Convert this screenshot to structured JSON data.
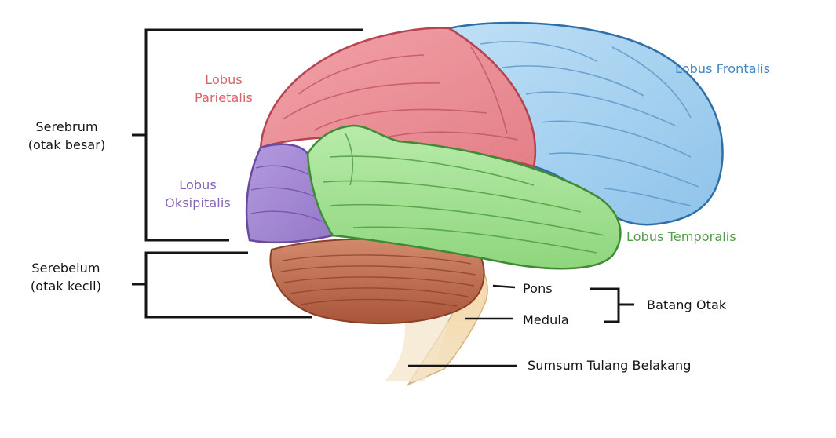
{
  "labels": {
    "parietal": {
      "line1": "Lobus",
      "line2": "Parietalis"
    },
    "frontal": "Lobus Frontalis",
    "occipital": {
      "line1": "Lobus",
      "line2": "Oksipitalis"
    },
    "temporal": "Lobus Temporalis",
    "cerebrum": {
      "line1": "Serebrum",
      "line2": "(otak besar)"
    },
    "cerebellum": {
      "line1": "Serebelum",
      "line2": "(otak kecil)"
    },
    "pons": "Pons",
    "medulla": "Medula",
    "brainstem": "Batang Otak",
    "spinal_cord": "Sumsum Tulang Belakang"
  },
  "colors": {
    "parietal": "#d9626c",
    "frontal": "#3f86c4",
    "occipital": "#8462b8",
    "temporal": "#4f9e45",
    "text_dark": "#141414"
  }
}
